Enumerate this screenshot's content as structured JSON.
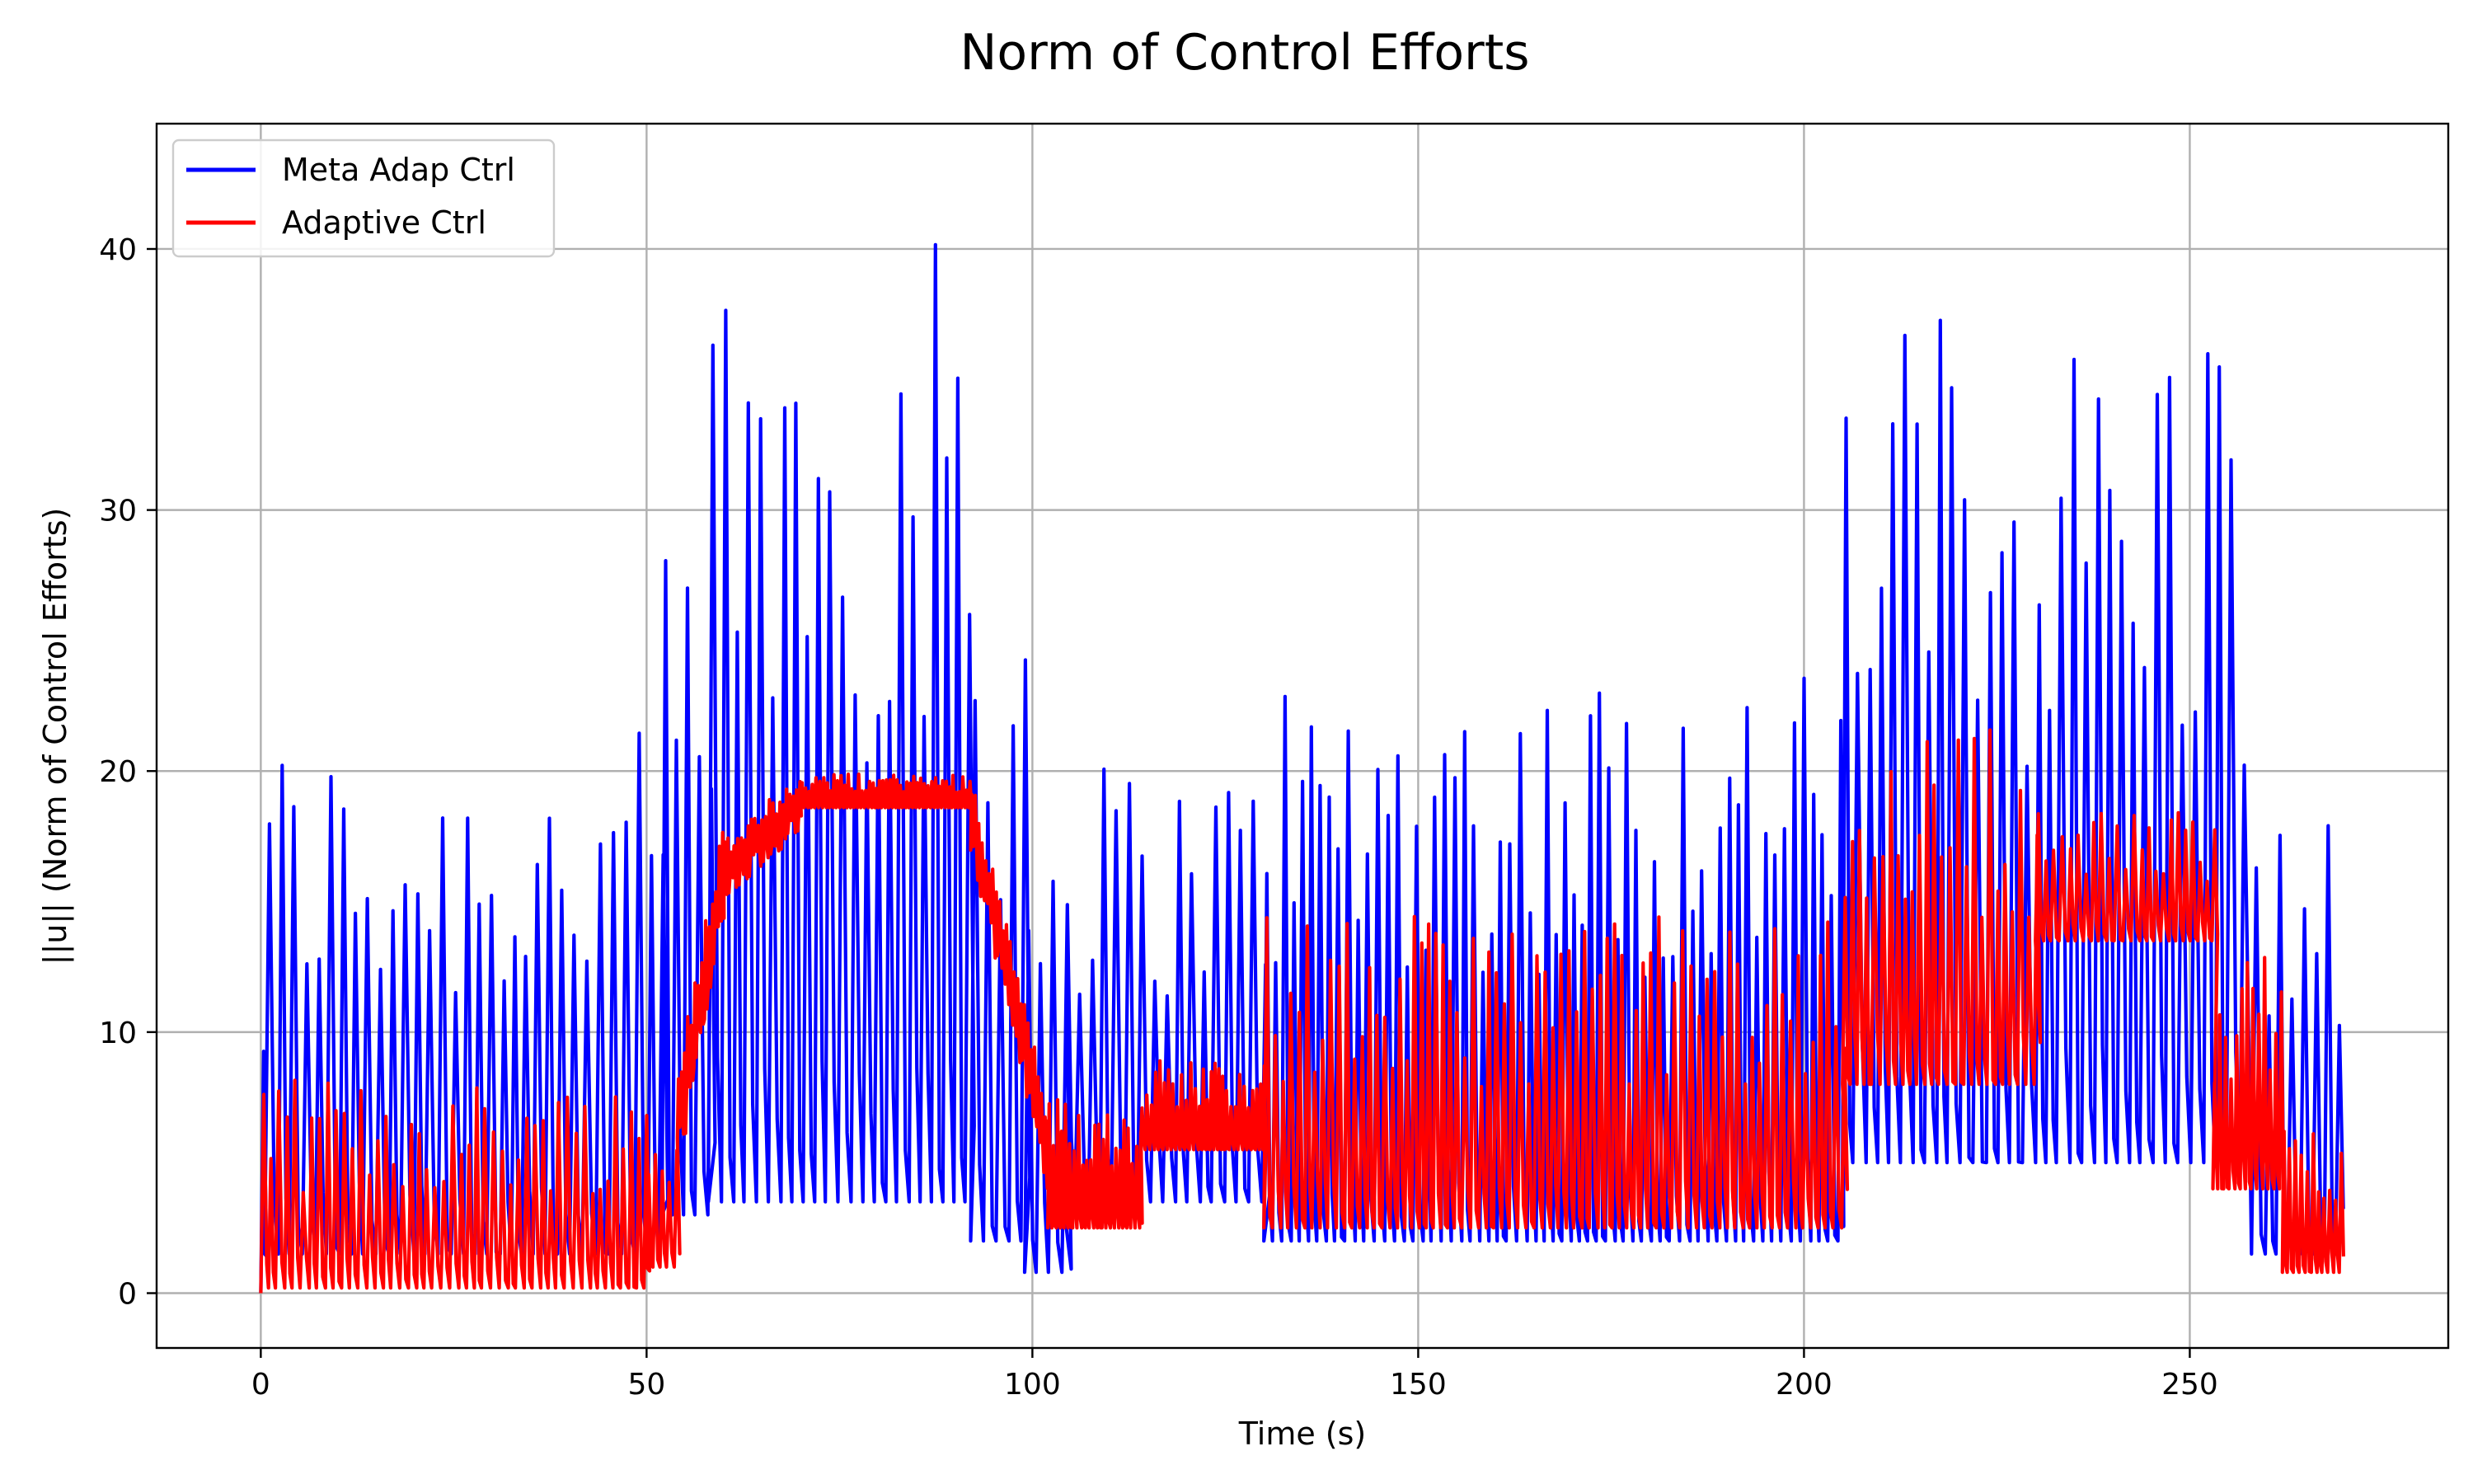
{
  "chart_data": {
    "type": "line",
    "title": "Norm of Control Efforts",
    "xlabel": "Time (s)",
    "ylabel": "||u|| (Norm of Control Efforts)",
    "xlim": [
      -13.5,
      283.5
    ],
    "ylim": [
      -2.1,
      44.8
    ],
    "xticks": [
      0,
      50,
      100,
      150,
      200,
      250
    ],
    "yticks": [
      0,
      10,
      20,
      30,
      40
    ],
    "xtick_labels": [
      "0",
      "50",
      "100",
      "150",
      "200",
      "250"
    ],
    "ytick_labels": [
      "0",
      "10",
      "20",
      "30",
      "40"
    ],
    "grid": true,
    "legend_position": "top-left",
    "series": [
      {
        "name": "Meta Adap Ctrl",
        "color": "#0000ff",
        "segments": [
          {
            "t0": 0,
            "t1": 0.5,
            "base": 0,
            "amp": 15,
            "period": 1.0
          },
          {
            "t0": 0.5,
            "t1": 52,
            "base": 1.5,
            "amp": 20,
            "period": 1.55
          },
          {
            "t0": 52,
            "t1": 58,
            "base": 3,
            "amp": 26,
            "period": 1.55
          },
          {
            "t0": 58,
            "t1": 92,
            "base": 3.5,
            "amp": 37,
            "period": 1.55
          },
          {
            "t0": 92,
            "t1": 99,
            "base": 2,
            "amp": 28,
            "period": 1.55
          },
          {
            "t0": 99,
            "t1": 104,
            "base": 0.8,
            "amp": 19,
            "period": 1.55
          },
          {
            "t0": 104,
            "t1": 130,
            "base": 3.5,
            "amp": 17,
            "period": 1.55
          },
          {
            "t0": 130,
            "t1": 205,
            "base": 2,
            "amp": 22,
            "period": 1.2
          },
          {
            "t0": 205,
            "t1": 258,
            "base": 5,
            "amp": 33,
            "period": 1.55
          },
          {
            "t0": 258,
            "t1": 270,
            "base": 1.5,
            "amp": 17,
            "period": 1.55
          }
        ]
      },
      {
        "name": "Adaptive Ctrl",
        "color": "#ff0000",
        "segments": [
          {
            "t0": 0,
            "t1": 1,
            "base": 0,
            "amp": 10.5,
            "period": 1.0
          },
          {
            "t0": 1,
            "t1": 50,
            "base": 0.2,
            "amp": 8,
            "period": 1.05
          },
          {
            "t0": 50,
            "t1": 54,
            "base": 1,
            "amp": 6,
            "period": 0.9
          },
          {
            "t0": 54,
            "t1": 60,
            "base": 8,
            "amp": 3,
            "period": 0.45,
            "trend": [
              6,
              16
            ]
          },
          {
            "t0": 60,
            "t1": 70,
            "base": 16,
            "amp": 1.5,
            "period": 0.45,
            "trend": [
              16,
              18.5
            ]
          },
          {
            "t0": 70,
            "t1": 92,
            "base": 18.6,
            "amp": 1.3,
            "period": 0.45
          },
          {
            "t0": 92,
            "t1": 102,
            "base": 10,
            "amp": 2,
            "period": 0.45,
            "trend": [
              18,
              5
            ]
          },
          {
            "t0": 102,
            "t1": 114,
            "base": 2.5,
            "amp": 5,
            "period": 0.55
          },
          {
            "t0": 114,
            "t1": 130,
            "base": 5.5,
            "amp": 3.5,
            "period": 0.55
          },
          {
            "t0": 130,
            "t1": 205,
            "base": 2.5,
            "amp": 12,
            "period": 1.0
          },
          {
            "t0": 205,
            "t1": 230,
            "base": 8,
            "amp": 14,
            "period": 1.0
          },
          {
            "t0": 230,
            "t1": 253,
            "base": 13.5,
            "amp": 5,
            "period": 1.0
          },
          {
            "t0": 253,
            "t1": 262,
            "base": 4,
            "amp": 9,
            "period": 0.7
          },
          {
            "t0": 262,
            "t1": 270,
            "base": 0.8,
            "amp": 6,
            "period": 0.7
          }
        ]
      }
    ]
  }
}
